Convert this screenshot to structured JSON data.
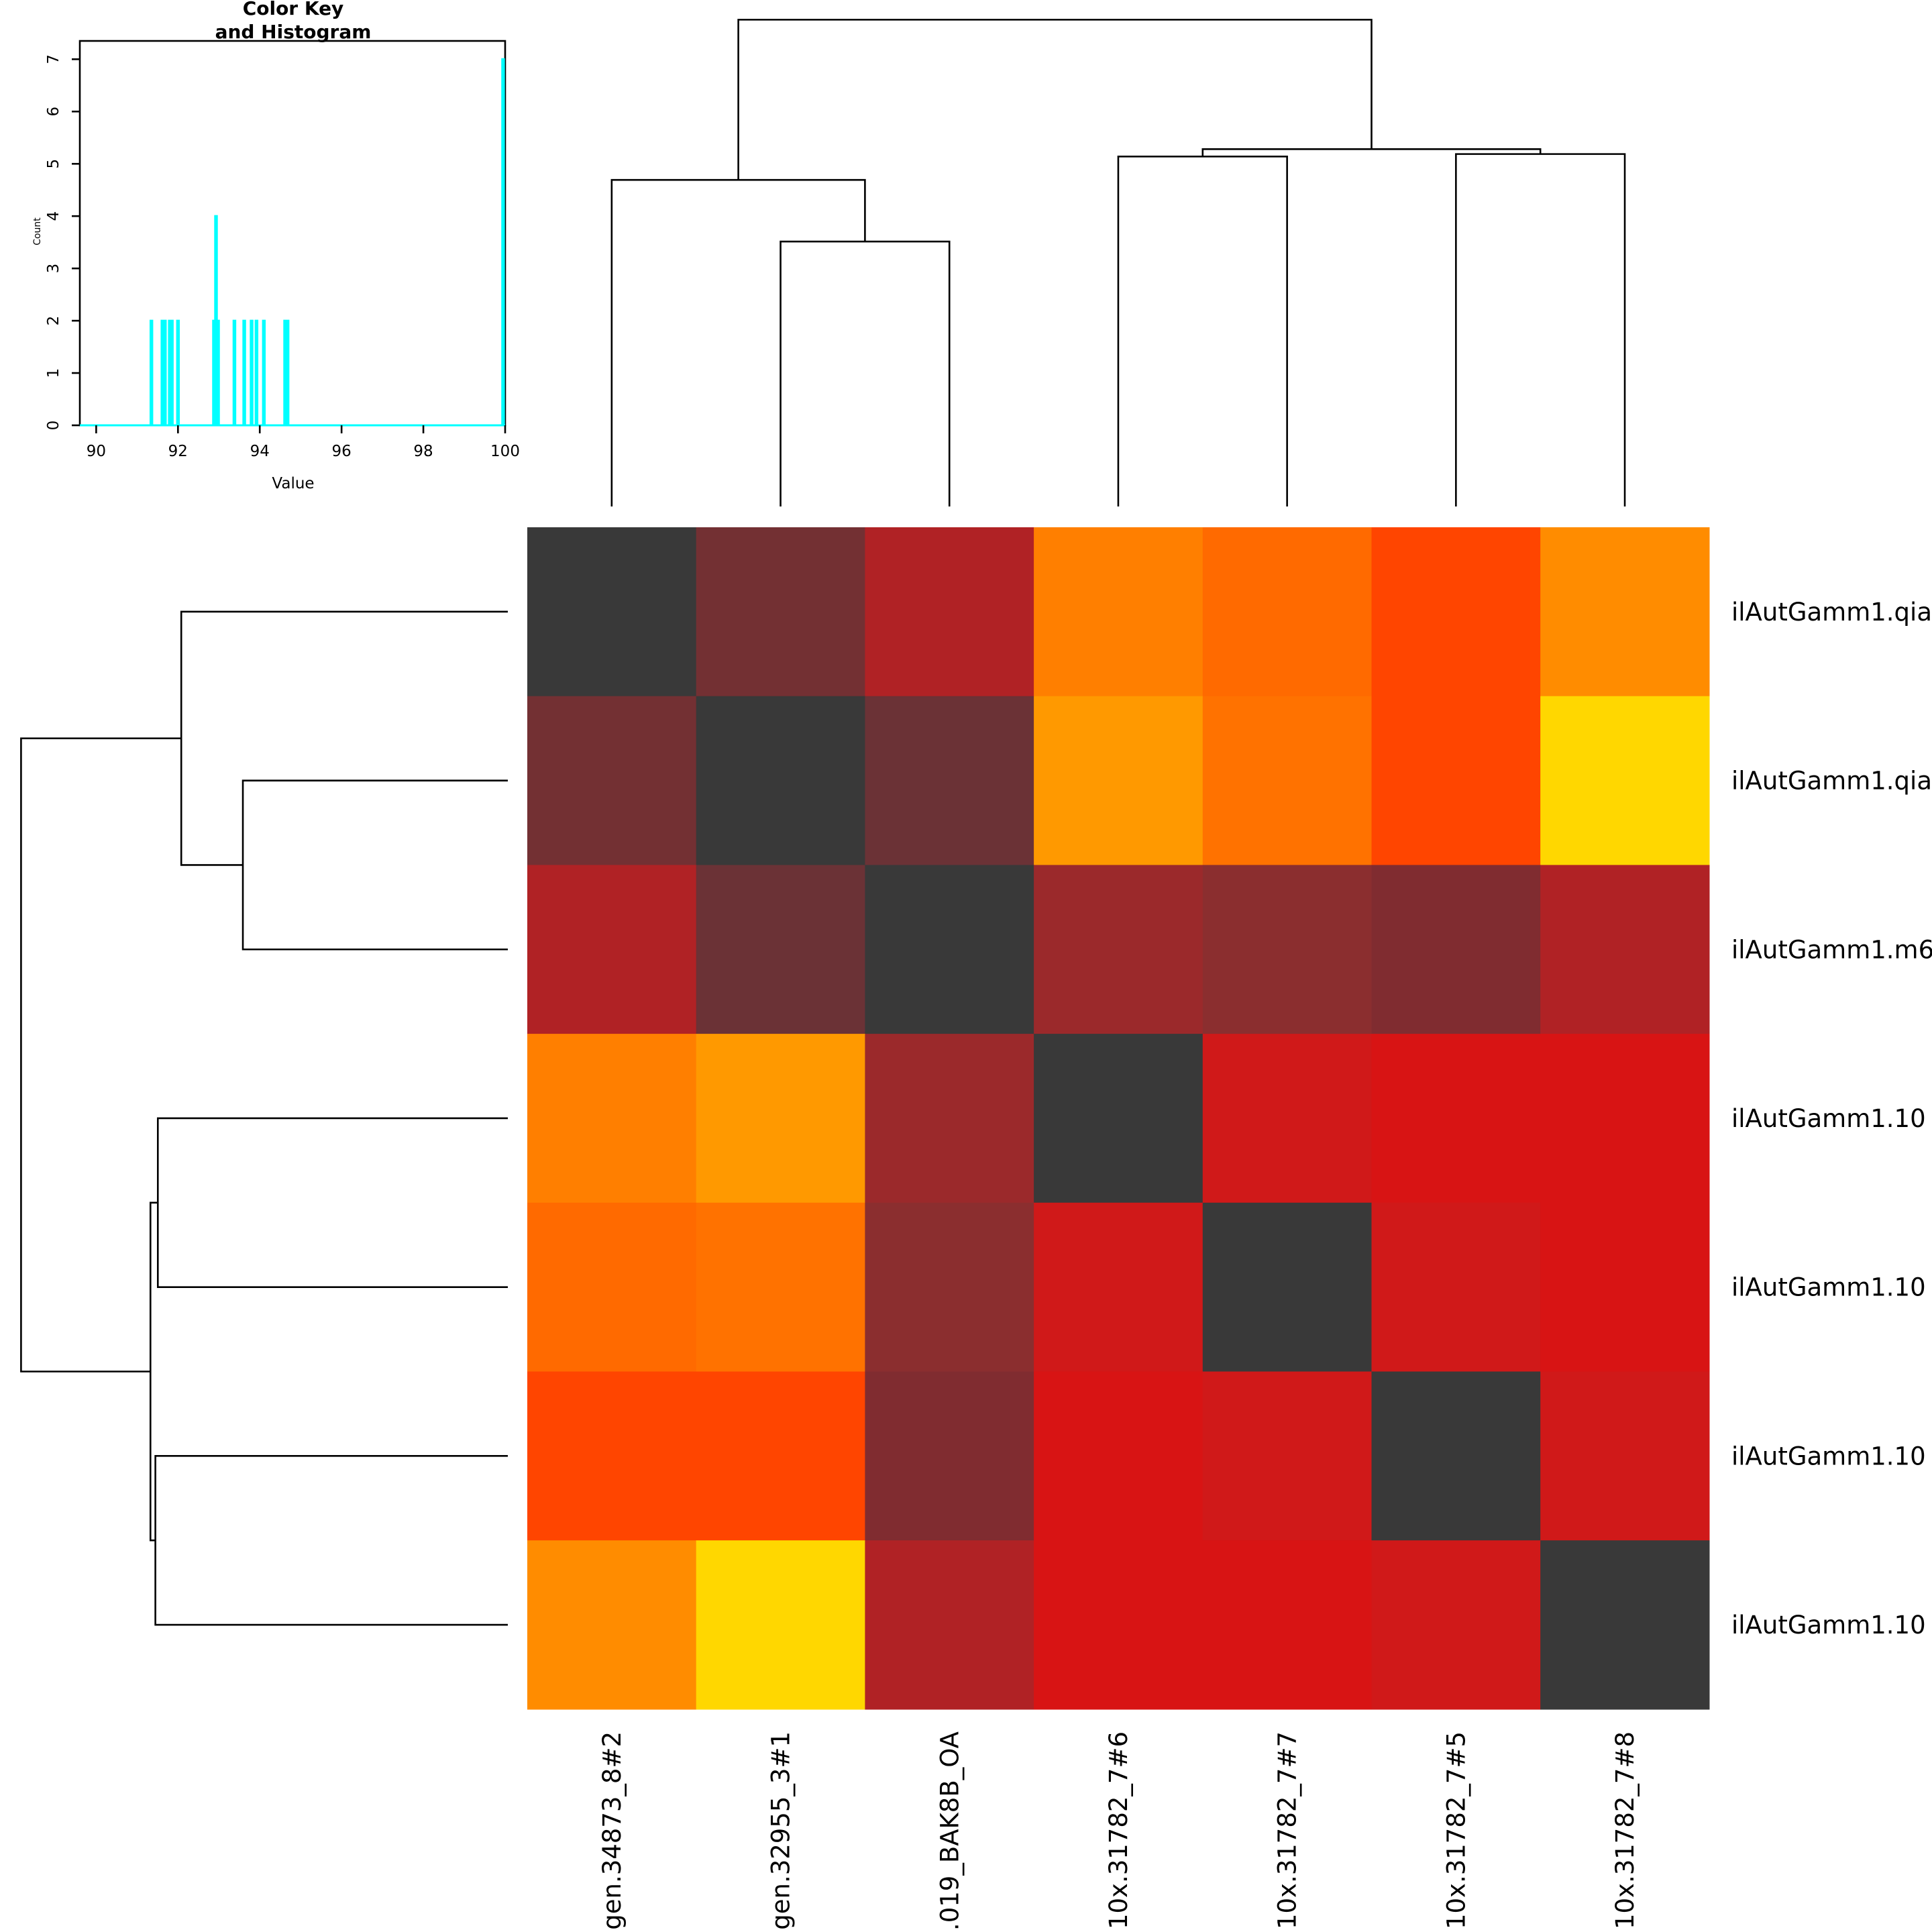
{
  "chart_data": {
    "type": "heatmap",
    "row_labels": [
      "ilAutGamm1.qia",
      "ilAutGamm1.qia",
      "ilAutGamm1.m6",
      "ilAutGamm1.10",
      "ilAutGamm1.10",
      "ilAutGamm1.10",
      "ilAutGamm1.10"
    ],
    "col_labels": [
      "gen.34873_8#2",
      "gen.32955_3#1",
      ".019_BAK8B_OA",
      "10x.31782_7#6",
      "10x.31782_7#7",
      "10x.31782_7#5",
      "10x.31782_7#8"
    ],
    "values": [
      [
        100,
        94.6,
        94.1,
        91.8,
        92.0,
        92.9,
        91.68
      ],
      [
        94.6,
        100,
        94.68,
        91.62,
        91.85,
        92.93,
        91.35
      ],
      [
        94.1,
        94.68,
        100,
        94.2,
        94.3,
        94.4,
        94.05
      ],
      [
        91.8,
        91.62,
        94.2,
        100,
        93.4,
        93.8,
        93.7
      ],
      [
        92.0,
        91.85,
        94.3,
        93.4,
        100,
        93.38,
        93.62
      ],
      [
        92.9,
        92.93,
        94.4,
        93.8,
        93.38,
        100,
        93.92
      ],
      [
        91.68,
        91.35,
        94.05,
        93.7,
        93.62,
        93.92,
        100
      ]
    ],
    "cell_colors": [
      [
        "#393939",
        "#733033",
        "#B02225",
        "#FF7F00",
        "#FF6A00",
        "#FF4500",
        "#FF8C00"
      ],
      [
        "#733033",
        "#393939",
        "#6B3236",
        "#FF9900",
        "#FF7200",
        "#FF4500",
        "#FFD700"
      ],
      [
        "#B02225",
        "#6B3236",
        "#393939",
        "#9B292B",
        "#8B2E2F",
        "#802C30",
        "#B02225"
      ],
      [
        "#FF7F00",
        "#FF9900",
        "#9B292B",
        "#393939",
        "#D01919",
        "#D81414",
        "#D81414"
      ],
      [
        "#FF6A00",
        "#FF7200",
        "#8B2E2F",
        "#D01919",
        "#393939",
        "#D01919",
        "#D81414"
      ],
      [
        "#FF4500",
        "#FF4500",
        "#802C30",
        "#D81414",
        "#D01919",
        "#393939",
        "#D01919"
      ],
      [
        "#FF8C00",
        "#FFD700",
        "#B02225",
        "#D81414",
        "#D81414",
        "#D01919",
        "#393939"
      ]
    ],
    "dendrogram": "rows and columns share the same clustering shown",
    "color_key": {
      "title_line1": "Color Key",
      "title_line2": "and Histogram",
      "xlabel": "Value",
      "ylabel": "Count",
      "xlim": [
        89.6,
        100
      ],
      "ylim": [
        0,
        7.35
      ],
      "x_ticks": [
        "90",
        "92",
        "94",
        "96",
        "98",
        "100"
      ],
      "y_ticks": [
        "0",
        "1",
        "2",
        "3",
        "4",
        "5",
        "6",
        "7"
      ],
      "histogram_color": "#00FFFF",
      "histogram": [
        {
          "x": 91.35,
          "count": 2
        },
        {
          "x": 91.62,
          "count": 2
        },
        {
          "x": 91.68,
          "count": 2
        },
        {
          "x": 91.8,
          "count": 2
        },
        {
          "x": 91.85,
          "count": 2
        },
        {
          "x": 92.0,
          "count": 2
        },
        {
          "x": 92.88,
          "count": 2
        },
        {
          "x": 92.93,
          "count": 4
        },
        {
          "x": 92.98,
          "count": 2
        },
        {
          "x": 93.38,
          "count": 2
        },
        {
          "x": 93.62,
          "count": 2
        },
        {
          "x": 93.8,
          "count": 2
        },
        {
          "x": 93.92,
          "count": 2
        },
        {
          "x": 94.1,
          "count": 2
        },
        {
          "x": 94.62,
          "count": 2
        },
        {
          "x": 94.68,
          "count": 2
        },
        {
          "x": 99.95,
          "count": 7
        }
      ]
    }
  }
}
